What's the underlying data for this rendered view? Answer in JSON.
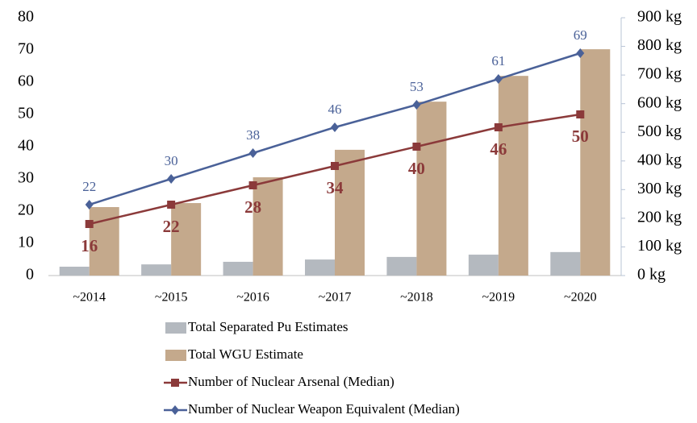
{
  "chart_data": {
    "type": "combo",
    "categories": [
      "~2014",
      "~2015",
      "~2016",
      "~2017",
      "~2018",
      "~2019",
      "~2020"
    ],
    "ylim": [
      0,
      80
    ],
    "yticks": [
      0,
      10,
      20,
      30,
      40,
      50,
      60,
      70,
      80
    ],
    "y2lim": [
      0,
      900
    ],
    "y2ticks": [
      {
        "value": 0,
        "label": "0 kg"
      },
      {
        "value": 100,
        "label": "100 kg"
      },
      {
        "value": 200,
        "label": "200 kg"
      },
      {
        "value": 300,
        "label": "300 kg"
      },
      {
        "value": 400,
        "label": "400 kg"
      },
      {
        "value": 500,
        "label": "500 kg"
      },
      {
        "value": 600,
        "label": "600 kg"
      },
      {
        "value": 700,
        "label": "700 kg"
      },
      {
        "value": 800,
        "label": "800 kg"
      },
      {
        "value": 900,
        "label": "900 kg"
      }
    ],
    "legend": "bottom",
    "series": [
      {
        "name": "Total Separated Pu Estimates",
        "type": "bar",
        "axis": "y2",
        "color": "#b4b9bf",
        "values": [
          31,
          39,
          48,
          56,
          65,
          73,
          82
        ]
      },
      {
        "name": "Total WGU Estimate",
        "type": "bar",
        "axis": "y2",
        "color": "#c4a98c",
        "values": [
          239,
          253,
          343,
          439,
          607,
          697,
          790
        ]
      },
      {
        "name": "Number of Nuclear Arsenal (Median)",
        "type": "line",
        "axis": "y",
        "color": "#8b3a3a",
        "marker": "square",
        "label_position": "below",
        "values": [
          16,
          22,
          28,
          34,
          40,
          46,
          50
        ]
      },
      {
        "name": "Number of Nuclear Weapon Equivalent (Median)",
        "type": "line",
        "axis": "y",
        "color": "#4a6198",
        "marker": "diamond",
        "label_position": "above",
        "values": [
          22,
          30,
          38,
          46,
          53,
          61,
          69
        ]
      }
    ]
  }
}
